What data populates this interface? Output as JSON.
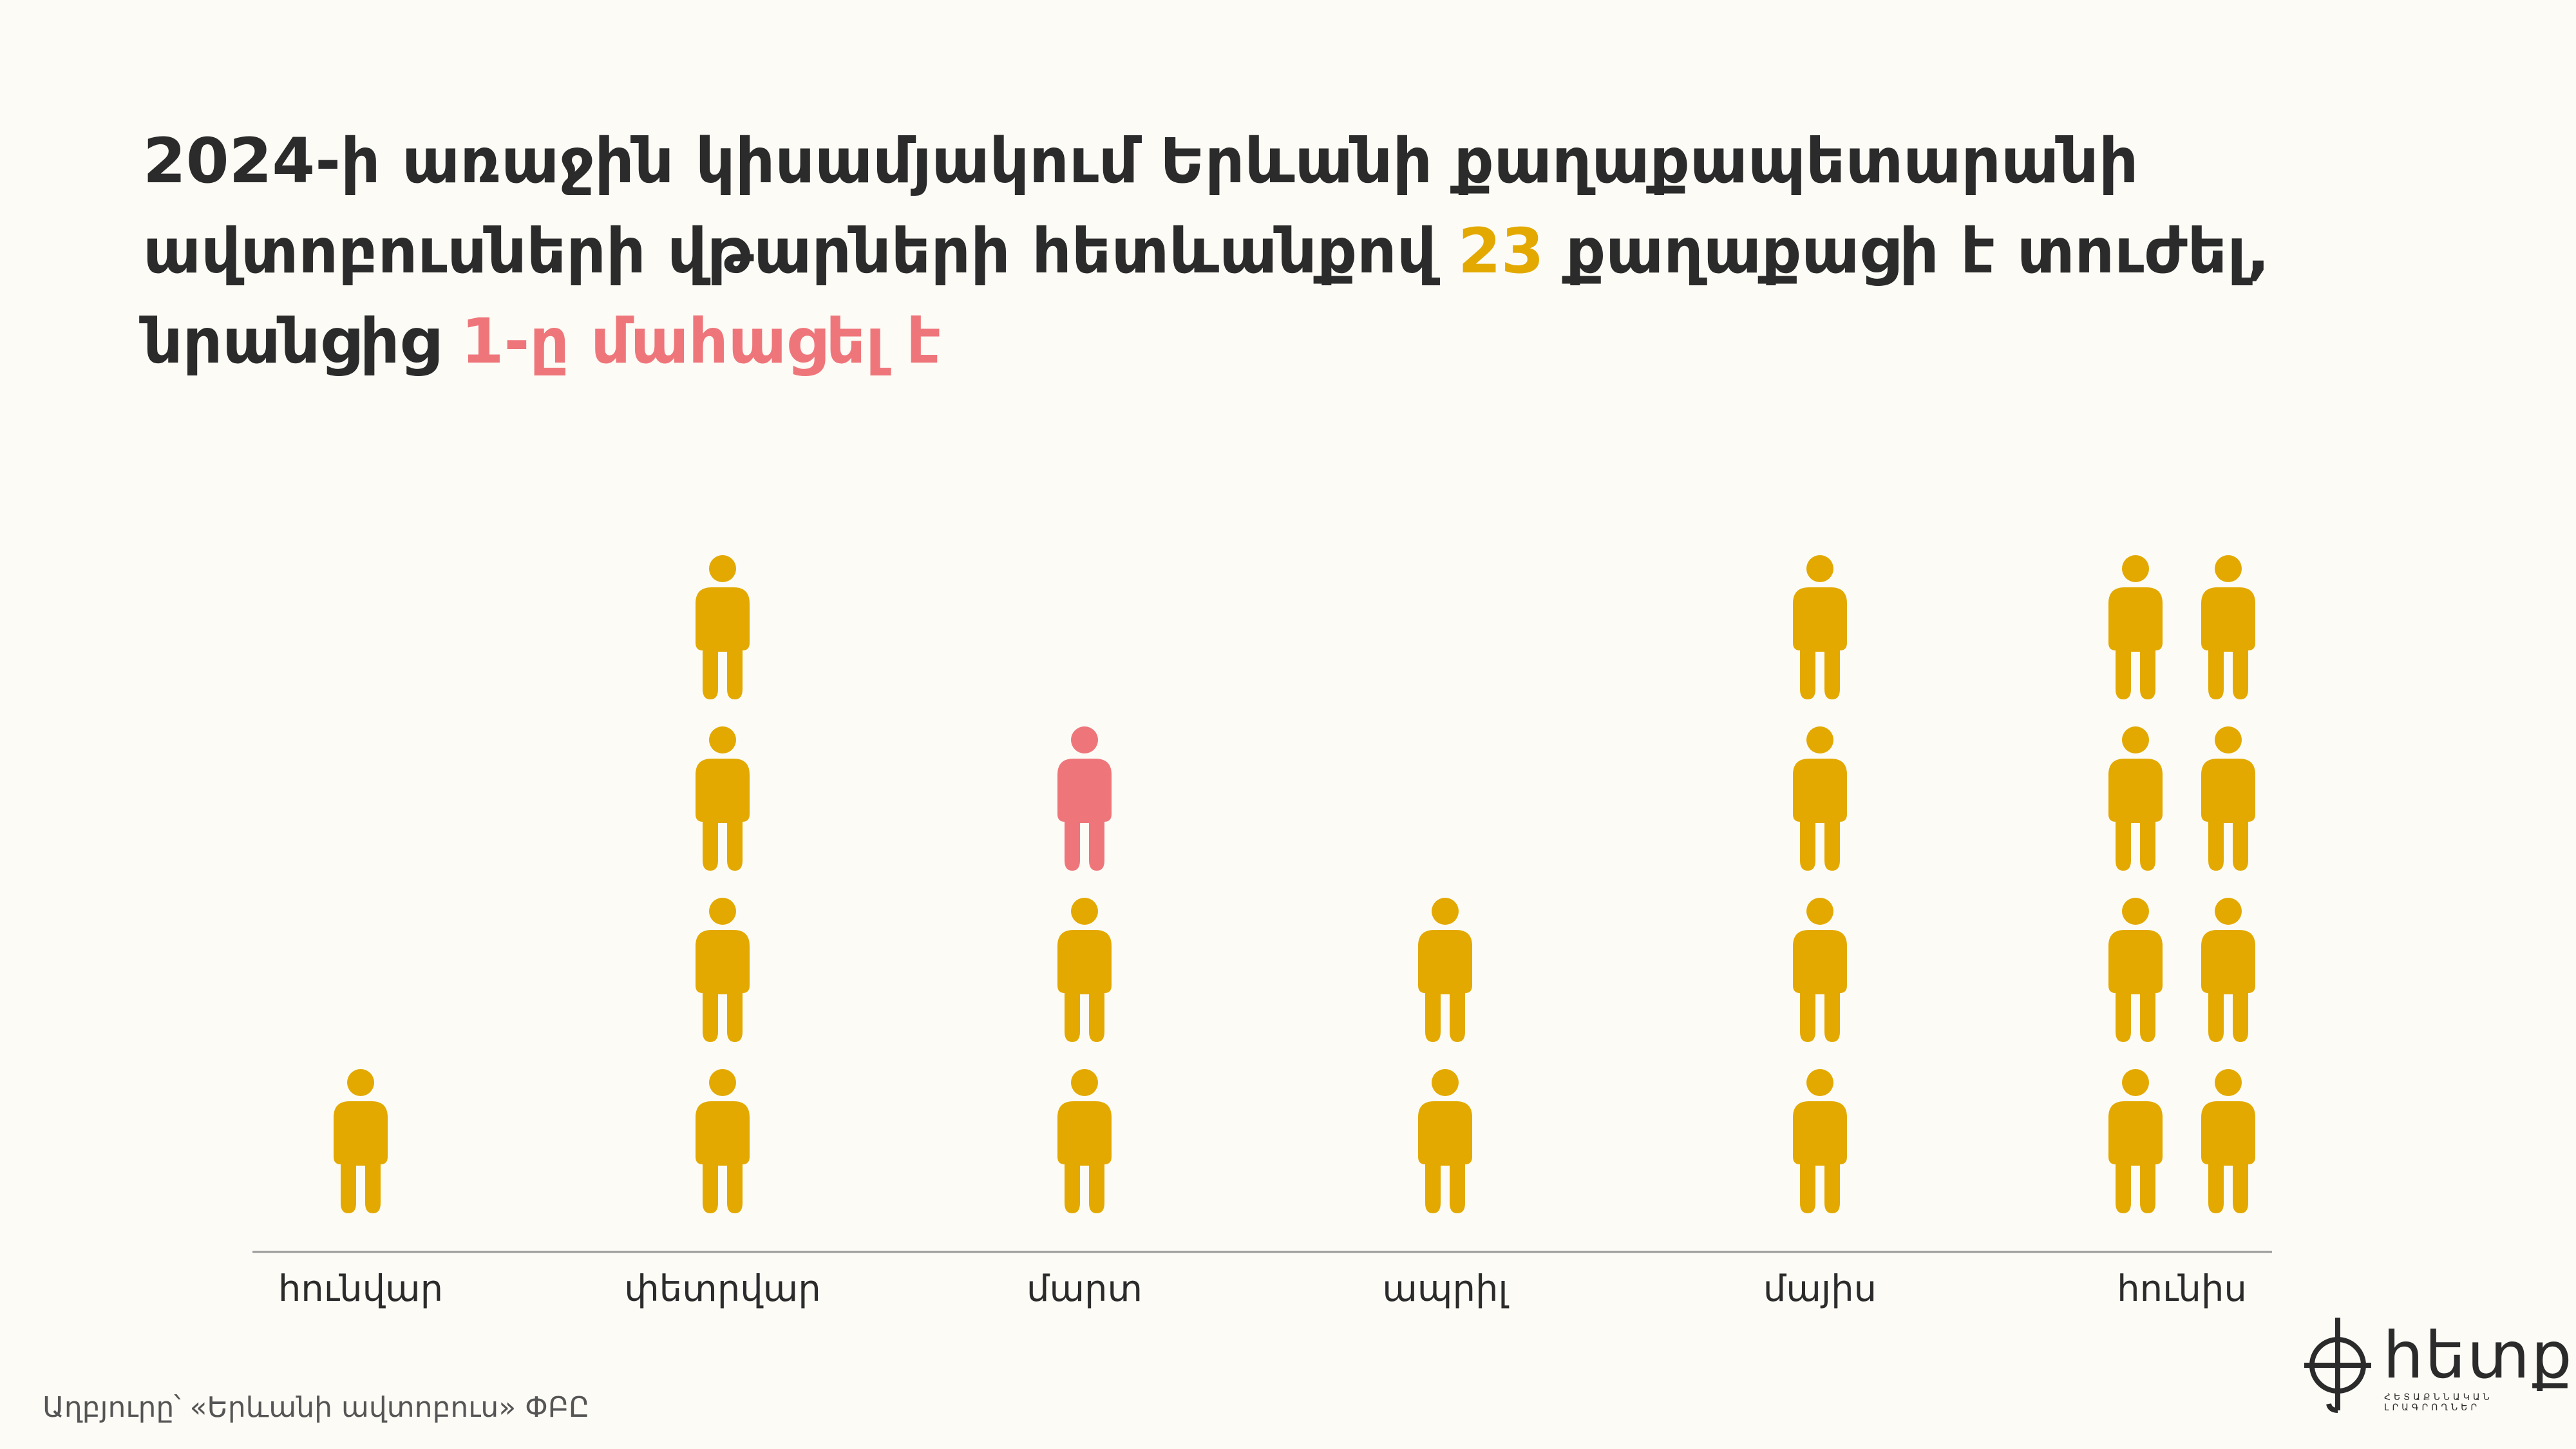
{
  "title": {
    "part1": "2024-ի առաջին կիսամյակում Երևանի քաղաքապետարանի ավտոբուսների վթարների հետևանքով ",
    "injured_count": "23",
    "part2": " քաղաքացի է տուժել, նրանցից ",
    "deaths_text": "1-ը մահացել է"
  },
  "colors": {
    "injured": "#e3a900",
    "died": "#ee767b",
    "background": "#fcfbf6",
    "text": "#2b2b2b",
    "axis": "#999999"
  },
  "chart_data": {
    "type": "pictogram",
    "categories": [
      "հունվար",
      "փետրվար",
      "մարտ",
      "ապրիլ",
      "մայիս",
      "հունիս"
    ],
    "series": [
      {
        "name": "տուժել",
        "values": [
          1,
          4,
          3,
          2,
          4,
          8
        ]
      },
      {
        "name": "մահացել",
        "values": [
          0,
          0,
          1,
          0,
          0,
          0
        ]
      }
    ],
    "total_injured": 23,
    "total_died": 1
  },
  "source": "Աղբյուրը՝ «Երևանի ավտոբուս» ՓԲԸ",
  "logo": {
    "text": "հետք",
    "subtitle": "ՀԵՏԱՔՆՆԱԿԱՆ ԼՐԱԳՐՈՂՆԵՐ",
    "icon": "hetq-logo-icon"
  }
}
